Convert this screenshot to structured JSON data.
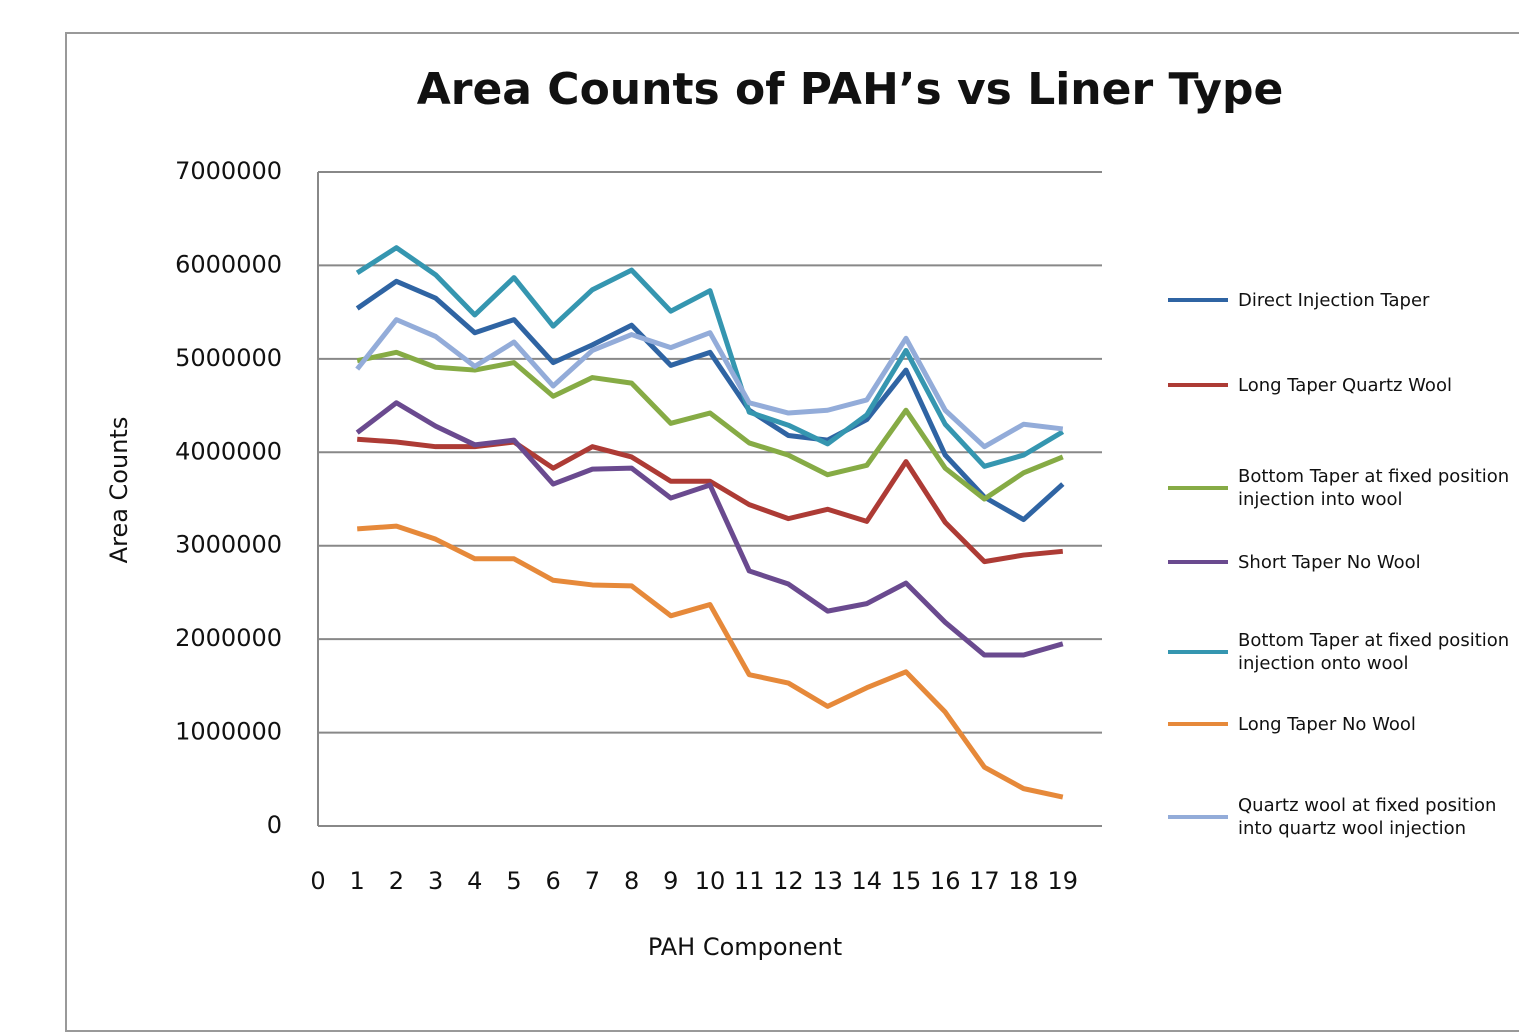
{
  "chart_data": {
    "type": "line",
    "title": "Area Counts of PAH’s vs Liner Type",
    "x_label": "PAH Component",
    "y_label": "Area Counts",
    "x": [
      1,
      2,
      3,
      4,
      5,
      6,
      7,
      8,
      9,
      10,
      11,
      12,
      13,
      14,
      15,
      16,
      17,
      18,
      19
    ],
    "xlim": [
      0,
      20
    ],
    "xticks": [
      0,
      1,
      2,
      3,
      4,
      5,
      6,
      7,
      8,
      9,
      10,
      11,
      12,
      13,
      14,
      15,
      16,
      17,
      18,
      19
    ],
    "ylim": [
      0,
      7000000
    ],
    "yticks": [
      0,
      1000000,
      2000000,
      3000000,
      4000000,
      5000000,
      6000000,
      7000000
    ],
    "grid": true,
    "legend": "right",
    "series": [
      {
        "name": "Direct Injection Taper",
        "color": "#2f64a3",
        "values": [
          5540000,
          5830000,
          5650000,
          5280000,
          5420000,
          4960000,
          5150000,
          5360000,
          4930000,
          5070000,
          4450000,
          4180000,
          4130000,
          4350000,
          4880000,
          3970000,
          3520000,
          3280000,
          3660000
        ]
      },
      {
        "name": "Long Taper Quartz Wool",
        "color": "#ad3b35",
        "values": [
          4140000,
          4110000,
          4060000,
          4060000,
          4110000,
          3830000,
          4060000,
          3950000,
          3690000,
          3690000,
          3440000,
          3290000,
          3390000,
          3260000,
          3900000,
          3250000,
          2830000,
          2900000,
          2940000
        ]
      },
      {
        "name": "Bottom Taper at fixed position injection into wool",
        "color": "#86ab45",
        "values": [
          4980000,
          5070000,
          4910000,
          4880000,
          4960000,
          4600000,
          4800000,
          4740000,
          4310000,
          4420000,
          4100000,
          3970000,
          3760000,
          3860000,
          4450000,
          3830000,
          3500000,
          3780000,
          3950000
        ]
      },
      {
        "name": "Short Taper No Wool",
        "color": "#6a4a8f",
        "values": [
          4210000,
          4530000,
          4280000,
          4080000,
          4130000,
          3660000,
          3820000,
          3830000,
          3510000,
          3650000,
          2730000,
          2590000,
          2300000,
          2380000,
          2600000,
          2180000,
          1830000,
          1830000,
          1950000
        ]
      },
      {
        "name": "Bottom Taper at fixed position injection onto wool",
        "color": "#3596b0",
        "values": [
          5920000,
          6190000,
          5900000,
          5470000,
          5870000,
          5350000,
          5740000,
          5950000,
          5510000,
          5730000,
          4430000,
          4290000,
          4090000,
          4400000,
          5090000,
          4300000,
          3850000,
          3970000,
          4220000
        ]
      },
      {
        "name": "Long Taper No Wool",
        "color": "#e6893a",
        "values": [
          3180000,
          3210000,
          3070000,
          2860000,
          2860000,
          2630000,
          2580000,
          2570000,
          2250000,
          2370000,
          1620000,
          1530000,
          1280000,
          1480000,
          1650000,
          1220000,
          630000,
          400000,
          310000
        ]
      },
      {
        "name": "Quartz wool at fixed position into quartz wool injection",
        "color": "#93acd9",
        "values": [
          4890000,
          5420000,
          5240000,
          4920000,
          5180000,
          4710000,
          5090000,
          5260000,
          5120000,
          5280000,
          4530000,
          4420000,
          4450000,
          4560000,
          5220000,
          4450000,
          4060000,
          4300000,
          4250000
        ]
      }
    ]
  }
}
